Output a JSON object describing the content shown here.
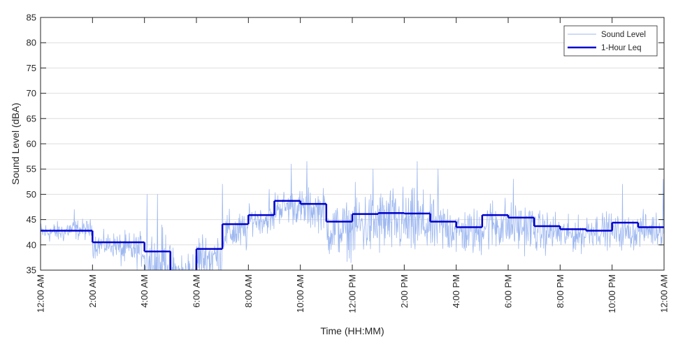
{
  "chart_data": {
    "type": "line",
    "xlabel": "Time (HH:MM)",
    "ylabel": "Sound Level (dBA)",
    "ylim": [
      35,
      85
    ],
    "xlim_hours": [
      0,
      24
    ],
    "yticks": [
      35,
      40,
      45,
      50,
      55,
      60,
      65,
      70,
      75,
      80,
      85
    ],
    "xticks": [
      {
        "hour": 0,
        "label": "12:00 AM"
      },
      {
        "hour": 2,
        "label": "2:00 AM"
      },
      {
        "hour": 4,
        "label": "4:00 AM"
      },
      {
        "hour": 6,
        "label": "6:00 AM"
      },
      {
        "hour": 8,
        "label": "8:00 AM"
      },
      {
        "hour": 10,
        "label": "10:00 AM"
      },
      {
        "hour": 12,
        "label": "12:00 PM"
      },
      {
        "hour": 14,
        "label": "2:00 PM"
      },
      {
        "hour": 16,
        "label": "4:00 PM"
      },
      {
        "hour": 18,
        "label": "6:00 PM"
      },
      {
        "hour": 20,
        "label": "8:00 PM"
      },
      {
        "hour": 22,
        "label": "10:00 PM"
      },
      {
        "hour": 24,
        "label": "12:00 AM"
      }
    ],
    "grid": "horizontal",
    "legend": {
      "position": "top-right",
      "entries": [
        "Sound Level",
        "1-Hour Leq"
      ]
    },
    "series": [
      {
        "name": "Sound Level",
        "color": "#9db7f0",
        "style": "thin-line",
        "hourly_mean": [
          42.5,
          43.0,
          40.0,
          39.0,
          36.5,
          34.0,
          37.5,
          42.5,
          45.0,
          47.5,
          47.0,
          43.0,
          44.0,
          44.5,
          44.0,
          43.5,
          42.5,
          44.0,
          43.5,
          42.5,
          42.0,
          43.0,
          42.5,
          43.0
        ],
        "hourly_spread": [
          1.5,
          1.5,
          1.8,
          2.5,
          5.0,
          4.0,
          4.0,
          3.0,
          2.0,
          2.5,
          3.0,
          4.0,
          5.0,
          5.0,
          5.0,
          4.0,
          3.5,
          4.0,
          3.5,
          3.0,
          2.5,
          2.5,
          2.5,
          2.5
        ],
        "peaks": [
          {
            "hour": 1.3,
            "value": 47.0
          },
          {
            "hour": 4.1,
            "value": 50.0
          },
          {
            "hour": 4.5,
            "value": 50.0
          },
          {
            "hour": 7.0,
            "value": 52.0
          },
          {
            "hour": 8.8,
            "value": 51.0
          },
          {
            "hour": 9.65,
            "value": 56.0
          },
          {
            "hour": 10.25,
            "value": 56.5
          },
          {
            "hour": 12.8,
            "value": 55.0
          },
          {
            "hour": 14.5,
            "value": 56.5
          },
          {
            "hour": 15.3,
            "value": 55.0
          },
          {
            "hour": 18.2,
            "value": 53.0
          },
          {
            "hour": 22.4,
            "value": 52.0
          },
          {
            "hour": 23.97,
            "value": 53.0
          }
        ]
      },
      {
        "name": "1-Hour Leq",
        "color": "#0000cd",
        "style": "step",
        "hours": [
          0,
          1,
          2,
          3,
          4,
          5,
          6,
          7,
          8,
          9,
          10,
          11,
          12,
          13,
          14,
          15,
          16,
          17,
          18,
          19,
          20,
          21,
          22,
          23
        ],
        "values": [
          42.8,
          42.8,
          40.5,
          40.5,
          38.7,
          30.0,
          39.2,
          44.1,
          45.9,
          48.7,
          48.1,
          44.6,
          46.1,
          46.3,
          46.2,
          44.6,
          43.5,
          45.9,
          45.4,
          43.7,
          43.1,
          42.8,
          44.4,
          43.5
        ]
      }
    ]
  }
}
